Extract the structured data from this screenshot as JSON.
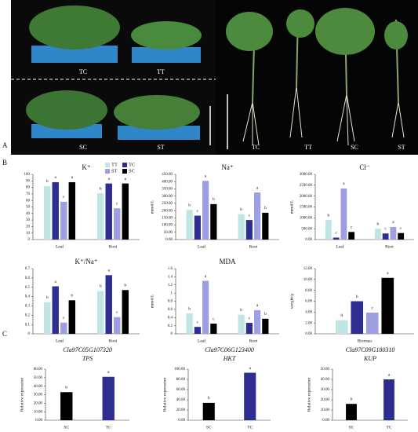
{
  "panel_letters": [
    "A",
    "B",
    "C"
  ],
  "photo_labels": {
    "left": [
      "TC",
      "TT",
      "SC",
      "ST"
    ],
    "right": [
      "TC",
      "TT",
      "SC",
      "ST"
    ]
  },
  "chart_data": [
    {
      "type": "bar",
      "title": "K⁺",
      "categories": [
        "Leaf",
        "Root"
      ],
      "ylim": [
        0,
        100
      ],
      "yticks": [
        0,
        10,
        20,
        30,
        40,
        50,
        60,
        70,
        80,
        90,
        100
      ],
      "legend": "upper right",
      "series": [
        {
          "name": "TT",
          "color": "#bfe5e5",
          "values": [
            82,
            71
          ],
          "significance": [
            "b",
            "b"
          ]
        },
        {
          "name": "TC",
          "color": "#2e2e91",
          "values": [
            88,
            86
          ],
          "significance": [
            "a",
            "a"
          ]
        },
        {
          "name": "ST",
          "color": "#9e9ee3",
          "values": [
            58,
            48
          ],
          "significance": [
            "c",
            "c"
          ]
        },
        {
          "name": "SC",
          "color": "#000000",
          "values": [
            88,
            86
          ],
          "significance": [
            "a",
            "a"
          ]
        }
      ]
    },
    {
      "type": "bar",
      "title": "Na⁺",
      "ylabel": "mmol/L",
      "categories": [
        "Leaf",
        "Root"
      ],
      "ylim": [
        0,
        450
      ],
      "yticks": [
        {
          "value": 0,
          "label": "0.00"
        },
        {
          "value": 50,
          "label": "50.00"
        },
        {
          "value": 100,
          "label": "100.00"
        },
        {
          "value": 150,
          "label": "150.00"
        },
        {
          "value": 200,
          "label": "200.00"
        },
        {
          "value": 250,
          "label": "250.00"
        },
        {
          "value": 300,
          "label": "300.00"
        },
        {
          "value": 350,
          "label": "350.00"
        },
        {
          "value": 400,
          "label": "400.00"
        },
        {
          "value": 450,
          "label": "450.00"
        }
      ],
      "series": [
        {
          "color": "#bfe5e5",
          "values": [
            205,
            175
          ],
          "significance": [
            "b",
            "b"
          ]
        },
        {
          "color": "#2e2e91",
          "values": [
            165,
            135
          ],
          "significance": [
            "c",
            "c"
          ]
        },
        {
          "color": "#9e9ee3",
          "values": [
            405,
            325
          ],
          "significance": [
            "a",
            "a"
          ]
        },
        {
          "color": "#000000",
          "values": [
            245,
            185
          ],
          "significance": [
            "b",
            "b"
          ]
        }
      ]
    },
    {
      "type": "bar",
      "title": "Cl⁻",
      "ylabel": "mmol/L",
      "categories": [
        "Leaf",
        "Root"
      ],
      "ylim": [
        0,
        3000
      ],
      "yticks": [
        {
          "value": 0,
          "label": "0.00"
        },
        {
          "value": 500,
          "label": "500.00"
        },
        {
          "value": 1000,
          "label": "1000.00"
        },
        {
          "value": 1500,
          "label": "1500.00"
        },
        {
          "value": 2000,
          "label": "2000.00"
        },
        {
          "value": 2500,
          "label": "2500.00"
        },
        {
          "value": 3000,
          "label": "3000.00"
        }
      ],
      "series": [
        {
          "color": "#bfe5e5",
          "values": [
            900,
            500
          ],
          "significance": [
            "b",
            "b"
          ]
        },
        {
          "color": "#2e2e91",
          "values": [
            90,
            280
          ],
          "significance": [
            "c",
            "c"
          ]
        },
        {
          "color": "#9e9ee3",
          "values": [
            2350,
            580
          ],
          "significance": [
            "a",
            "a"
          ]
        },
        {
          "color": "#000000",
          "values": [
            350,
            300
          ],
          "significance": [
            "c",
            "c"
          ]
        }
      ]
    },
    {
      "type": "bar",
      "title": "K⁺/Na⁺",
      "categories": [
        "Leaf",
        "Root"
      ],
      "ylim": [
        0,
        0.7
      ],
      "yticks": [
        0,
        0.1,
        0.2,
        0.3,
        0.4,
        0.5,
        0.6,
        0.7
      ],
      "series": [
        {
          "color": "#bfe5e5",
          "values": [
            0.34,
            0.46
          ],
          "significance": [
            "b",
            "b"
          ]
        },
        {
          "color": "#2e2e91",
          "values": [
            0.51,
            0.63
          ],
          "significance": [
            "a",
            "a"
          ]
        },
        {
          "color": "#9e9ee3",
          "values": [
            0.12,
            0.18
          ],
          "significance": [
            "c",
            "c"
          ]
        },
        {
          "color": "#000000",
          "values": [
            0.36,
            0.47
          ],
          "significance": [
            "b",
            "b"
          ]
        }
      ]
    },
    {
      "type": "bar",
      "title": "MDA",
      "ylabel": "mmol/L",
      "categories": [
        "Leaf",
        "Root"
      ],
      "ylim": [
        0,
        1.6
      ],
      "yticks": [
        0,
        0.2,
        0.4,
        0.6,
        0.8,
        1,
        1.2,
        1.4,
        1.6
      ],
      "series": [
        {
          "color": "#bfe5e5",
          "values": [
            0.5,
            0.47
          ],
          "significance": [
            "b",
            "b"
          ]
        },
        {
          "color": "#2e2e91",
          "values": [
            0.17,
            0.27
          ],
          "significance": [
            "c",
            "c"
          ]
        },
        {
          "color": "#9e9ee3",
          "values": [
            1.3,
            0.58
          ],
          "significance": [
            "a",
            "a"
          ]
        },
        {
          "color": "#000000",
          "values": [
            0.25,
            0.37
          ],
          "significance": [
            "c",
            "b"
          ]
        }
      ]
    },
    {
      "type": "bar",
      "ylabel": "weight/g",
      "categories": [
        "Biomass"
      ],
      "ylim": [
        0,
        12
      ],
      "yticks": [
        {
          "value": 0,
          "label": "0.00"
        },
        {
          "value": 2,
          "label": "2.00"
        },
        {
          "value": 4,
          "label": "4.00"
        },
        {
          "value": 6,
          "label": "6.00"
        },
        {
          "value": 8,
          "label": "8.00"
        },
        {
          "value": 10,
          "label": "10.00"
        },
        {
          "value": 12,
          "label": "12.00"
        }
      ],
      "series": [
        {
          "color": "#bfe5e5",
          "values": [
            2.5
          ],
          "significance": [
            "d"
          ]
        },
        {
          "color": "#2e2e91",
          "values": [
            6.0
          ],
          "significance": [
            "b"
          ]
        },
        {
          "color": "#9e9ee3",
          "values": [
            3.9
          ],
          "significance": [
            "c"
          ]
        },
        {
          "color": "#000000",
          "values": [
            10.3
          ],
          "significance": [
            "a"
          ]
        }
      ]
    },
    {
      "type": "bar",
      "title": "Cla97C05G107320",
      "subtitle": "TPS",
      "ylabel": "Relative expression",
      "categories": [
        "SC",
        "TC"
      ],
      "ylim": [
        0,
        60
      ],
      "yticks": [
        {
          "value": 0,
          "label": "0.00"
        },
        {
          "value": 10,
          "label": "10.00"
        },
        {
          "value": 20,
          "label": "20.00"
        },
        {
          "value": 30,
          "label": "30.00"
        },
        {
          "value": 40,
          "label": "40.00"
        },
        {
          "value": 50,
          "label": "50.00"
        },
        {
          "value": 60,
          "label": "60.00"
        }
      ],
      "series": [
        {
          "colors": [
            "#000000",
            "#2e2e91"
          ],
          "values": [
            33,
            51
          ],
          "significance": [
            "b",
            "a"
          ]
        }
      ]
    },
    {
      "type": "bar",
      "title": "Cla97C06G123400",
      "subtitle": "HKT",
      "ylabel": "Relative expression",
      "categories": [
        "SC",
        "TC"
      ],
      "ylim": [
        0,
        100
      ],
      "yticks": [
        {
          "value": 0,
          "label": "0.00"
        },
        {
          "value": 20,
          "label": "20.00"
        },
        {
          "value": 40,
          "label": "40.00"
        },
        {
          "value": 60,
          "label": "60.00"
        },
        {
          "value": 80,
          "label": "80.00"
        },
        {
          "value": 100,
          "label": "100.00"
        }
      ],
      "series": [
        {
          "colors": [
            "#000000",
            "#2e2e91"
          ],
          "values": [
            34,
            93
          ],
          "significance": [
            "b",
            "a"
          ]
        }
      ]
    },
    {
      "type": "bar",
      "title": "Cla97C09G180310",
      "subtitle": "KUP",
      "ylabel": "Relative expression",
      "categories": [
        "SC",
        "TC"
      ],
      "ylim": [
        0,
        50
      ],
      "yticks": [
        {
          "value": 0,
          "label": "0.00"
        },
        {
          "value": 10,
          "label": "10.00"
        },
        {
          "value": 20,
          "label": "20.00"
        },
        {
          "value": 30,
          "label": "30.00"
        },
        {
          "value": 40,
          "label": "40.00"
        },
        {
          "value": 50,
          "label": "50.00"
        }
      ],
      "series": [
        {
          "colors": [
            "#000000",
            "#2e2e91"
          ],
          "values": [
            16,
            40
          ],
          "significance": [
            "b",
            "a"
          ]
        }
      ]
    }
  ]
}
